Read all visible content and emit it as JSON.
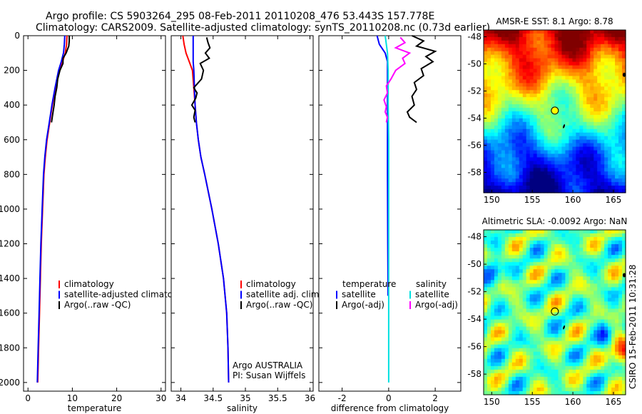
{
  "header": {
    "line1": "Argo profile: CS 5903264_295 08-Feb-2011 20110208_476 53.443S 157.778E",
    "line2": "Climatology: CARS2009. Satellite-adjusted climatology: synTS_20110208.nc (0.73d earlier)"
  },
  "chart_data": [
    {
      "type": "line",
      "panel": "temperature",
      "xlabel": "temperature",
      "ylabel": "",
      "xlim": [
        -1,
        31
      ],
      "ylim": [
        0,
        2050
      ],
      "y_reversed": true,
      "xticks": [
        0,
        10,
        20,
        30
      ],
      "xtick_labels": [
        "0",
        "10",
        "20",
        "30"
      ],
      "yticks": [
        0,
        200,
        400,
        600,
        800,
        1000,
        1200,
        1400,
        1600,
        1800,
        2000
      ],
      "ytick_labels": [
        "0",
        "200",
        "400",
        "600",
        "800",
        "1000",
        "1200",
        "1400",
        "1600",
        "1800",
        "2000"
      ],
      "legend": [
        "climatology",
        "satellite-adjusted climatology",
        "Argo(..raw -QC)"
      ],
      "legend_placement": "lower-right",
      "series": [
        {
          "name": "climatology",
          "color": "#ff0000",
          "x": [
            8.8,
            8.7,
            8.4,
            7.8,
            7.0,
            6.2,
            5.5,
            4.9,
            4.3,
            3.9,
            3.6,
            3.3,
            3.0,
            2.8,
            2.6,
            2.4,
            2.2
          ],
          "y": [
            0,
            50,
            100,
            150,
            200,
            300,
            400,
            500,
            600,
            700,
            800,
            1000,
            1200,
            1400,
            1600,
            1800,
            2000
          ]
        },
        {
          "name": "satellite-adjusted climatology",
          "color": "#0000ff",
          "x": [
            8.3,
            8.2,
            8.0,
            7.5,
            6.9,
            6.1,
            5.4,
            4.8,
            4.2,
            3.8,
            3.5,
            3.2,
            2.9,
            2.7,
            2.5,
            2.3,
            2.1
          ],
          "y": [
            0,
            50,
            100,
            150,
            200,
            300,
            400,
            500,
            600,
            700,
            800,
            1000,
            1200,
            1400,
            1600,
            1800,
            2000
          ]
        },
        {
          "name": "Argo(..raw -QC)",
          "color": "#000000",
          "x": [
            9.3,
            9.3,
            9.2,
            8.6,
            7.9,
            7.9,
            7.2,
            6.7,
            6.5,
            6.1,
            5.9,
            5.6,
            5.3
          ],
          "y": [
            0,
            30,
            60,
            100,
            130,
            160,
            200,
            250,
            300,
            350,
            400,
            450,
            500
          ]
        }
      ]
    },
    {
      "type": "line",
      "panel": "salinity",
      "xlabel": "salinity",
      "ylabel": "",
      "xlim": [
        33.85,
        36.05
      ],
      "ylim": [
        0,
        2050
      ],
      "y_reversed": true,
      "xticks": [
        34,
        34.5,
        35,
        35.5,
        36
      ],
      "xtick_labels": [
        "34",
        "34.5",
        "35",
        "35.5",
        "36"
      ],
      "legend": [
        "climatology",
        "satellite adj. clim.",
        "Argo(..raw -QC)"
      ],
      "legend_placement": "lower-right",
      "annotation": [
        "Argo AUSTRALIA",
        "PI: Susan Wijffels"
      ],
      "series": [
        {
          "name": "climatology",
          "color": "#ff0000",
          "x": [
            34.03,
            34.05,
            34.08,
            34.13,
            34.18,
            34.2,
            34.22,
            34.24,
            34.27,
            34.31,
            34.37,
            34.48,
            34.58,
            34.66,
            34.71,
            34.73,
            34.74
          ],
          "y": [
            0,
            50,
            100,
            150,
            200,
            300,
            400,
            500,
            600,
            700,
            800,
            1000,
            1200,
            1400,
            1600,
            1800,
            2000
          ]
        },
        {
          "name": "satellite adj. clim.",
          "color": "#0000ff",
          "x": [
            34.19,
            34.19,
            34.19,
            34.19,
            34.2,
            34.21,
            34.22,
            34.24,
            34.27,
            34.31,
            34.37,
            34.48,
            34.58,
            34.66,
            34.71,
            34.73,
            34.74
          ],
          "y": [
            0,
            50,
            100,
            150,
            200,
            300,
            400,
            500,
            600,
            700,
            800,
            1000,
            1200,
            1400,
            1600,
            1800,
            2000
          ]
        },
        {
          "name": "Argo(..raw -QC)",
          "color": "#000000",
          "x": [
            34.4,
            34.42,
            34.45,
            34.38,
            34.44,
            34.3,
            34.35,
            34.32,
            34.2,
            34.25,
            34.23,
            34.17,
            34.22,
            34.2,
            34.22
          ],
          "y": [
            10,
            40,
            70,
            100,
            130,
            160,
            200,
            250,
            300,
            330,
            360,
            400,
            430,
            470,
            500
          ]
        }
      ]
    },
    {
      "type": "line",
      "panel": "difference",
      "xlabel": "difference from climatology",
      "ylabel": "",
      "xlim": [
        -3,
        3.1
      ],
      "ylim": [
        0,
        2050
      ],
      "y_reversed": true,
      "xticks": [
        -2,
        0,
        2
      ],
      "xtick_labels": [
        "-2",
        "0",
        "2"
      ],
      "legend": [
        "temperature",
        "satellite",
        "Argo(-adj)",
        "salinity",
        "satellite",
        "Argo(-adj)"
      ],
      "legend_placement": "lower-center",
      "series": [
        {
          "name": "temperature satellite",
          "color": "#0000ff",
          "x": [
            -0.5,
            -0.4,
            -0.15,
            -0.05,
            -0.05,
            -0.05,
            -0.05,
            -0.04,
            -0.03,
            -0.03
          ],
          "y": [
            0,
            50,
            100,
            150,
            200,
            400,
            800,
            1200,
            1400,
            1500
          ]
        },
        {
          "name": "temperature Argo(-adj)",
          "color": "#000000",
          "x": [
            1.0,
            1.5,
            1.2,
            2.0,
            1.6,
            1.9,
            1.4,
            1.5,
            1.1,
            1.2,
            1.0,
            1.1,
            0.8,
            0.9,
            1.2
          ],
          "y": [
            0,
            30,
            60,
            90,
            120,
            150,
            190,
            230,
            270,
            310,
            350,
            400,
            440,
            470,
            500
          ]
        },
        {
          "name": "salinity satellite",
          "color": "#00e0e0",
          "x": [
            -0.15,
            -0.1,
            -0.05,
            -0.02,
            -0.02,
            0,
            0,
            0,
            0,
            0,
            0
          ],
          "y": [
            0,
            50,
            100,
            200,
            400,
            600,
            800,
            1200,
            1600,
            1800,
            2000
          ]
        },
        {
          "name": "salinity Argo(-adj)",
          "color": "#ff00ff",
          "x": [
            0.5,
            0.7,
            0.3,
            0.9,
            0.6,
            0.7,
            0.3,
            0.1,
            -0.1,
            -0.05,
            -0.2,
            -0.1,
            -0.15,
            -0.05,
            -0.1
          ],
          "y": [
            10,
            40,
            70,
            100,
            130,
            160,
            200,
            250,
            290,
            330,
            370,
            410,
            440,
            470,
            500
          ]
        }
      ]
    },
    {
      "type": "heatmap",
      "title": "AMSR-E SST: 8.1 Argo: 8.78",
      "xlim": [
        149,
        166.5
      ],
      "ylim": [
        -59.5,
        -47.5
      ],
      "xticks": [
        150,
        155,
        160,
        165
      ],
      "yticks": [
        -48,
        -50,
        -52,
        -54,
        -56,
        -58
      ],
      "xtick_labels": [
        "150",
        "155",
        "160",
        "165"
      ],
      "ytick_labels": [
        "-48",
        "-50",
        "-52",
        "-54",
        "-56",
        "-58"
      ],
      "colormap": "jet",
      "marker": {
        "lon": 157.778,
        "lat": -53.443,
        "fill": "#ffff00"
      }
    },
    {
      "type": "heatmap",
      "title": "Altimetric SLA: -0.0092 Argo: NaN",
      "xlim": [
        149,
        166.5
      ],
      "ylim": [
        -59.5,
        -47.5
      ],
      "xticks": [
        150,
        155,
        160,
        165
      ],
      "yticks": [
        -48,
        -50,
        -52,
        -54,
        -56,
        -58
      ],
      "xtick_labels": [
        "150",
        "155",
        "160",
        "165"
      ],
      "ytick_labels": [
        "-48",
        "-50",
        "-52",
        "-54",
        "-56",
        "-58"
      ],
      "colormap": "jet",
      "marker": {
        "lon": 157.778,
        "lat": -53.443,
        "fill": "none"
      }
    }
  ],
  "stamp": "CSIRO 15-Feb-2011 10:31:28"
}
